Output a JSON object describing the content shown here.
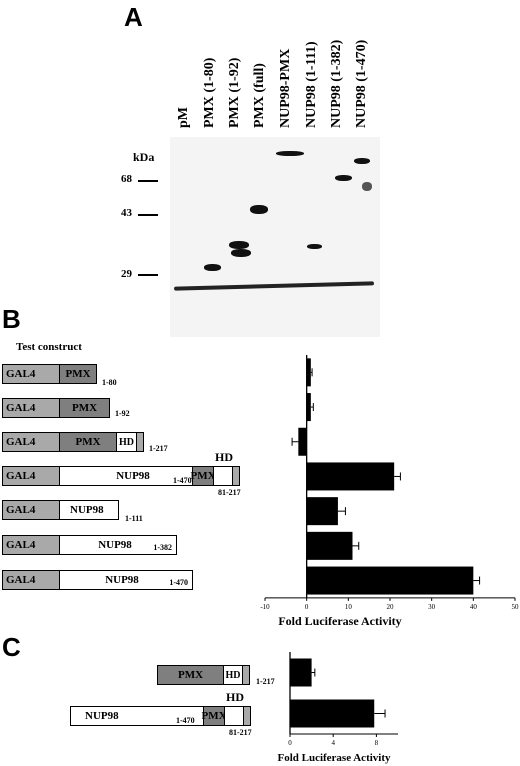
{
  "panel_a": {
    "letter": "A",
    "lanes": [
      "pM",
      "PMX (1-80)",
      "PMX (1-92)",
      "PMX (full)",
      "NUP98-PMX",
      "NUP98 (1-111)",
      "NUP98 (1-382)",
      "NUP98 (1-470)"
    ],
    "kda_label": "kDa",
    "markers": [
      "68",
      "43",
      "29"
    ]
  },
  "panel_b": {
    "letter": "B",
    "test_construct": "Test construct",
    "constructs": [
      {
        "gal4": "GAL4",
        "pmx": "PMX",
        "range": "1-80"
      },
      {
        "gal4": "GAL4",
        "pmx": "PMX",
        "range": "1-92"
      },
      {
        "gal4": "GAL4",
        "pmx": "PMX",
        "hd": "HD",
        "range": "1-217"
      },
      {
        "gal4": "GAL4",
        "nup": "NUP98",
        "nup_range": "1-470",
        "pmx": "PMX",
        "hd": "HD",
        "range": "81-217"
      },
      {
        "gal4": "GAL4",
        "nup": "NUP98",
        "range": "1-111"
      },
      {
        "gal4": "GAL4",
        "nup": "NUP98",
        "range": "1-382"
      },
      {
        "gal4": "GAL4",
        "nup": "NUP98",
        "range": "1-470"
      }
    ]
  },
  "panel_c": {
    "letter": "C",
    "constructs": [
      {
        "pmx": "PMX",
        "hd": "HD",
        "range": "1-217"
      },
      {
        "nup": "NUP98",
        "nup_range": "1-470",
        "pmx": "PMX",
        "hd": "HD",
        "range": "81-217"
      }
    ]
  },
  "chart_data": [
    {
      "type": "bar",
      "orientation": "horizontal",
      "categories": [
        "GAL4-PMX 1-80",
        "GAL4-PMX 1-92",
        "GAL4-PMX 1-217",
        "GAL4-NUP98-PMX",
        "GAL4-NUP98 1-111",
        "GAL4-NUP98 1-382",
        "GAL4-NUP98 1-470"
      ],
      "values": [
        1,
        1,
        -2,
        21,
        7.5,
        11,
        40
      ],
      "errors": [
        0.3,
        0.6,
        1.5,
        1.5,
        1.8,
        1.5,
        1.5
      ],
      "xlim": [
        -10,
        50
      ],
      "xticks": [
        "-10",
        "0",
        "10",
        "20",
        "30",
        "40",
        "50"
      ],
      "xlabel": "Fold Luciferase Activity",
      "color": "#000000"
    },
    {
      "type": "bar",
      "orientation": "horizontal",
      "categories": [
        "PMX 1-217",
        "NUP98-PMX"
      ],
      "values": [
        2,
        7.8
      ],
      "errors": [
        0.3,
        1.0
      ],
      "xlim": [
        0,
        10
      ],
      "xticks": [
        "0",
        "4",
        "8"
      ],
      "xlabel": "Fold Luciferase Activity",
      "color": "#000000"
    }
  ]
}
